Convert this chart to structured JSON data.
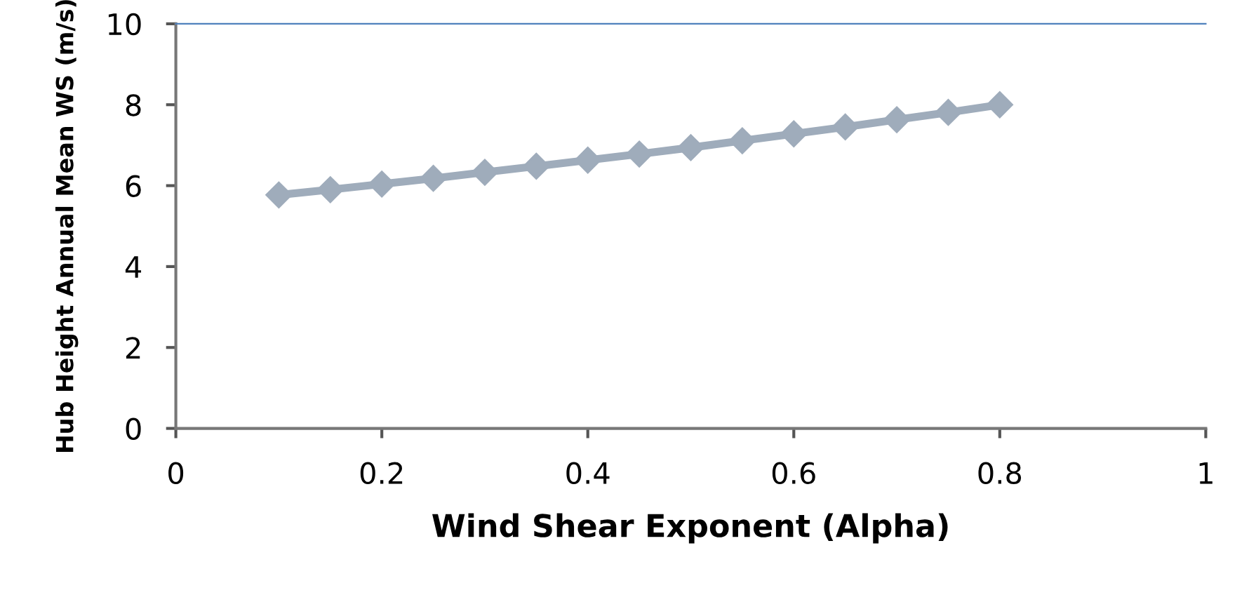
{
  "chart_data": {
    "type": "line",
    "xlabel": "Wind Shear Exponent (Alpha)",
    "ylabel": "Hub Height Annual Mean WS (m/s)",
    "x": [
      0.1,
      0.15,
      0.2,
      0.25,
      0.3,
      0.35,
      0.4,
      0.45,
      0.5,
      0.55,
      0.6,
      0.65,
      0.7,
      0.75,
      0.8
    ],
    "series": [
      {
        "color": "#9facbb",
        "values": [
          5.77,
          5.9,
          6.04,
          6.18,
          6.33,
          6.48,
          6.63,
          6.78,
          6.94,
          7.11,
          7.28,
          7.45,
          7.63,
          7.81,
          8.0
        ]
      }
    ],
    "xlim": [
      0,
      1
    ],
    "xticks": [
      0,
      0.2,
      0.4,
      0.6,
      0.8,
      1
    ],
    "ylim": [
      0,
      10
    ],
    "yticks": [
      0,
      2,
      4,
      6,
      8,
      10
    ],
    "marker": "diamond",
    "line_style": "solid",
    "grid": false
  }
}
